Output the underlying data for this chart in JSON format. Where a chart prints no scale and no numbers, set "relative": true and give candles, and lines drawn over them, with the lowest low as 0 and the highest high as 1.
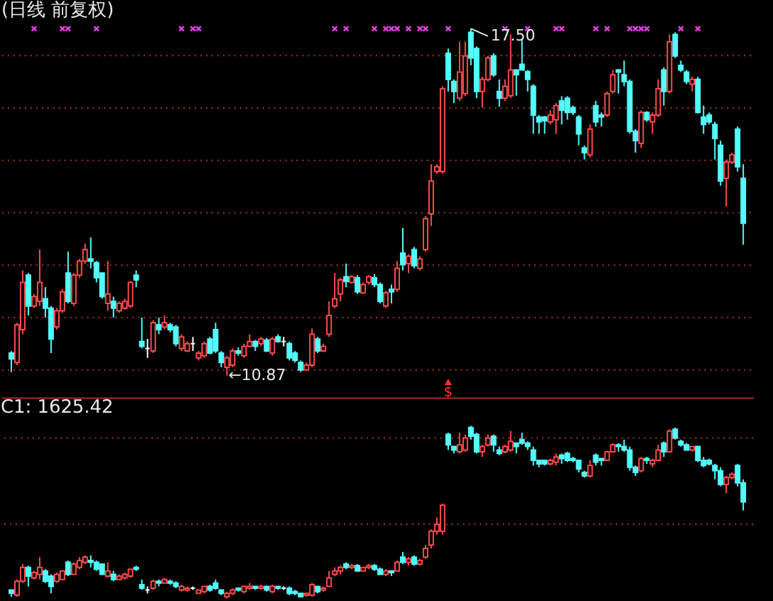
{
  "chart_data": [
    {
      "type": "candlestick",
      "title": "(日线 前复权)",
      "tick_labels": false,
      "grid": "y",
      "yticks": [
        {
          "value": 11,
          "label": null
        },
        {
          "value": 12,
          "label": null
        },
        {
          "value": 13,
          "label": null
        },
        {
          "value": 14,
          "label": null
        },
        {
          "value": 15,
          "label": null
        },
        {
          "value": 16,
          "label": null
        },
        {
          "value": 17,
          "label": null
        }
      ],
      "categories": [
        null,
        null,
        null,
        null,
        null,
        null,
        null,
        null,
        null,
        null,
        null,
        null,
        null,
        null,
        null,
        null,
        null,
        null,
        null,
        null,
        null,
        null,
        null,
        null,
        null,
        null,
        null,
        null,
        null,
        null,
        null,
        null,
        null,
        null,
        null,
        null,
        null,
        null,
        null,
        null,
        null,
        null,
        null,
        null,
        null,
        null,
        null,
        null,
        null,
        null,
        null,
        null,
        null,
        null,
        null,
        null,
        null,
        null,
        null,
        null,
        null,
        null,
        null,
        null,
        null,
        null,
        null,
        null,
        null,
        null,
        null,
        null,
        null,
        null,
        null,
        null,
        null,
        null,
        null,
        null,
        null,
        null,
        null,
        null,
        null,
        null,
        null,
        null,
        null,
        null,
        null,
        null,
        null,
        null,
        null,
        null,
        null,
        null,
        null,
        null,
        null,
        null,
        null,
        null,
        null,
        null,
        null,
        null,
        null,
        null,
        null,
        null,
        null,
        null,
        null,
        null,
        null,
        null,
        null,
        null,
        null,
        null,
        null,
        null,
        null,
        null,
        null,
        null,
        null,
        null
      ],
      "ohlc": [
        [
          11.3,
          11.34,
          10.94,
          11.19
        ],
        [
          11.12,
          11.88,
          11.07,
          11.84
        ],
        [
          11.75,
          12.88,
          11.66,
          12.65
        ],
        [
          12.79,
          12.83,
          12.02,
          12.2
        ],
        [
          12.2,
          12.43,
          12.16,
          12.38
        ],
        [
          12.29,
          13.28,
          12.2,
          12.65
        ],
        [
          12.34,
          12.56,
          11.98,
          12.16
        ],
        [
          12.16,
          12.2,
          11.3,
          11.57
        ],
        [
          11.8,
          12.16,
          11.75,
          12.11
        ],
        [
          12.11,
          12.52,
          12.07,
          12.47
        ],
        [
          12.83,
          13.24,
          12.25,
          12.29
        ],
        [
          12.25,
          12.83,
          12.2,
          12.79
        ],
        [
          12.79,
          13.1,
          12.74,
          13.06
        ],
        [
          13.06,
          13.39,
          13.01,
          13.28
        ],
        [
          13.1,
          13.51,
          12.92,
          13.06
        ],
        [
          13.03,
          13.06,
          12.65,
          12.74
        ],
        [
          12.83,
          12.83,
          12.34,
          12.38
        ],
        [
          12.25,
          13.06,
          12.11,
          12.43
        ],
        [
          12.29,
          12.38,
          11.98,
          12.16
        ],
        [
          12.11,
          12.29,
          12.07,
          12.25
        ],
        [
          12.16,
          12.34,
          12.13,
          12.29
        ],
        [
          12.2,
          12.67,
          12.16,
          12.65
        ],
        [
          12.79,
          12.88,
          12.56,
          12.7
        ],
        [
          11.52,
          11.98,
          11.39,
          11.43
        ],
        [
          11.39,
          11.57,
          11.21,
          11.39
        ],
        [
          11.34,
          11.93,
          11.3,
          11.88
        ],
        [
          11.84,
          11.98,
          11.66,
          11.75
        ],
        [
          11.8,
          12.02,
          11.75,
          11.88
        ],
        [
          11.84,
          11.88,
          11.7,
          11.75
        ],
        [
          11.8,
          11.84,
          11.43,
          11.48
        ],
        [
          11.39,
          11.66,
          11.34,
          11.61
        ],
        [
          11.34,
          11.52,
          11.32,
          11.48
        ],
        [
          11.48,
          11.61,
          11.34,
          11.48
        ],
        [
          11.21,
          11.34,
          11.16,
          11.3
        ],
        [
          11.25,
          11.52,
          11.21,
          11.48
        ],
        [
          11.57,
          11.61,
          11.28,
          11.3
        ],
        [
          11.75,
          11.88,
          11.3,
          11.34
        ],
        [
          11.3,
          11.34,
          11.03,
          11.12
        ],
        [
          11.03,
          11.25,
          10.87,
          11.21
        ],
        [
          11.07,
          11.39,
          11.03,
          11.34
        ],
        [
          11.34,
          11.41,
          11.25,
          11.3
        ],
        [
          11.25,
          11.48,
          11.21,
          11.43
        ],
        [
          11.43,
          11.66,
          11.41,
          11.52
        ],
        [
          11.52,
          11.55,
          11.34,
          11.43
        ],
        [
          11.48,
          11.61,
          11.43,
          11.57
        ],
        [
          11.55,
          11.59,
          11.32,
          11.34
        ],
        [
          11.3,
          11.61,
          11.25,
          11.57
        ],
        [
          11.61,
          11.66,
          11.5,
          11.52
        ],
        [
          11.52,
          11.61,
          11.43,
          11.52
        ],
        [
          11.48,
          11.52,
          11.16,
          11.21
        ],
        [
          11.3,
          11.34,
          11.12,
          11.16
        ],
        [
          11.12,
          11.16,
          10.94,
          10.98
        ],
        [
          10.98,
          11.12,
          10.96,
          11.07
        ],
        [
          11.07,
          11.77,
          11.03,
          11.66
        ],
        [
          11.57,
          11.61,
          11.3,
          11.34
        ],
        [
          11.34,
          11.48,
          11.32,
          11.43
        ],
        [
          11.66,
          12.29,
          11.61,
          12.02
        ],
        [
          12.2,
          12.83,
          12.16,
          12.34
        ],
        [
          12.43,
          12.74,
          12.29,
          12.7
        ],
        [
          12.76,
          13.01,
          12.56,
          12.67
        ],
        [
          12.65,
          12.79,
          12.63,
          12.76
        ],
        [
          12.74,
          12.79,
          12.43,
          12.47
        ],
        [
          12.45,
          12.65,
          12.43,
          12.61
        ],
        [
          12.65,
          12.79,
          12.61,
          12.76
        ],
        [
          12.74,
          12.81,
          12.56,
          12.61
        ],
        [
          12.61,
          12.65,
          12.25,
          12.29
        ],
        [
          12.2,
          12.49,
          12.16,
          12.45
        ],
        [
          12.52,
          12.61,
          12.25,
          12.47
        ],
        [
          12.52,
          13.06,
          12.47,
          12.92
        ],
        [
          13.21,
          13.69,
          12.88,
          12.99
        ],
        [
          13.01,
          13.19,
          12.83,
          13.15
        ],
        [
          13.28,
          13.33,
          12.92,
          12.97
        ],
        [
          12.92,
          13.15,
          12.88,
          13.1
        ],
        [
          13.28,
          13.92,
          13.24,
          13.87
        ],
        [
          13.96,
          14.91,
          13.73,
          14.59
        ],
        [
          14.77,
          14.91,
          14.73,
          14.86
        ],
        [
          14.77,
          16.4,
          14.73,
          16.35
        ],
        [
          17.03,
          17.12,
          16.3,
          16.53
        ],
        [
          16.49,
          16.53,
          16.08,
          16.3
        ],
        [
          16.17,
          17.25,
          16.12,
          16.67
        ],
        [
          16.26,
          17.25,
          16.21,
          16.98
        ],
        [
          17.43,
          17.5,
          16.8,
          16.94
        ],
        [
          17.12,
          17.16,
          16.17,
          16.3
        ],
        [
          16.3,
          16.58,
          15.99,
          16.53
        ],
        [
          16.53,
          16.98,
          16.49,
          16.94
        ],
        [
          16.98,
          17.03,
          16.58,
          16.62
        ],
        [
          16.3,
          16.53,
          16.01,
          16.17
        ],
        [
          16.17,
          16.53,
          16.12,
          16.4
        ],
        [
          16.22,
          17.39,
          16.17,
          16.71
        ],
        [
          16.71,
          16.71,
          16.22,
          16.62
        ],
        [
          16.82,
          17.3,
          16.71,
          16.71
        ],
        [
          16.68,
          16.71,
          16.3,
          16.53
        ],
        [
          16.4,
          16.44,
          15.49,
          15.85
        ],
        [
          15.81,
          15.85,
          15.49,
          15.72
        ],
        [
          15.81,
          15.83,
          15.49,
          15.74
        ],
        [
          15.72,
          15.94,
          15.67,
          15.85
        ],
        [
          15.76,
          16.08,
          15.49,
          16.03
        ],
        [
          16.12,
          16.21,
          15.67,
          15.94
        ],
        [
          16.17,
          16.21,
          15.76,
          15.9
        ],
        [
          15.99,
          16.03,
          15.85,
          15.9
        ],
        [
          15.81,
          15.85,
          15.27,
          15.49
        ],
        [
          15.22,
          15.27,
          15.0,
          15.13
        ],
        [
          15.09,
          15.67,
          15.04,
          15.58
        ],
        [
          16.03,
          16.12,
          15.63,
          15.72
        ],
        [
          15.85,
          15.9,
          15.63,
          15.81
        ],
        [
          15.85,
          16.3,
          15.81,
          16.26
        ],
        [
          16.3,
          16.71,
          16.26,
          16.62
        ],
        [
          16.71,
          16.73,
          16.26,
          16.67
        ],
        [
          16.62,
          16.89,
          16.4,
          16.49
        ],
        [
          16.49,
          16.53,
          15.49,
          15.54
        ],
        [
          15.54,
          15.58,
          15.13,
          15.36
        ],
        [
          15.31,
          15.94,
          15.22,
          15.9
        ],
        [
          15.9,
          15.92,
          15.72,
          15.76
        ],
        [
          15.72,
          15.9,
          15.49,
          15.85
        ],
        [
          15.85,
          16.53,
          15.81,
          16.35
        ],
        [
          16.71,
          16.76,
          16.03,
          16.3
        ],
        [
          16.3,
          17.39,
          16.26,
          17.25
        ],
        [
          17.39,
          17.43,
          16.94,
          16.98
        ],
        [
          16.8,
          16.89,
          16.67,
          16.71
        ],
        [
          16.67,
          16.71,
          16.44,
          16.49
        ],
        [
          16.44,
          16.58,
          16.3,
          16.53
        ],
        [
          16.53,
          16.58,
          15.88,
          15.9
        ],
        [
          15.81,
          16.03,
          15.49,
          15.67
        ],
        [
          15.85,
          15.9,
          15.67,
          15.72
        ],
        [
          15.67,
          15.72,
          15.0,
          15.4
        ],
        [
          15.27,
          15.36,
          14.5,
          14.59
        ],
        [
          14.64,
          15.0,
          14.1,
          14.95
        ],
        [
          14.95,
          15.13,
          14.91,
          15.09
        ],
        [
          15.58,
          15.63,
          14.77,
          14.86
        ],
        [
          14.64,
          14.91,
          13.37,
          13.78
        ]
      ],
      "colors": [
        "#54fcfc",
        "#ff4a4a",
        "#ff4a4a",
        "#54fcfc",
        "#ff4a4a",
        "#ff4a4a",
        "#54fcfc",
        "#54fcfc",
        "#ff4a4a",
        "#ff4a4a",
        "#54fcfc",
        "#ff4a4a",
        "#ff4a4a",
        "#ff4a4a",
        "#54fcfc",
        "#54fcfc",
        "#54fcfc",
        "#ff4a4a",
        "#54fcfc",
        "#ff4a4a",
        "#ff4a4a",
        "#ff4a4a",
        "#54fcfc",
        "#54fcfc",
        "#ffffff",
        "#ff4a4a",
        "#54fcfc",
        "#ff4a4a",
        "#54fcfc",
        "#54fcfc",
        "#ff4a4a",
        "#ff4a4a",
        "#ffffff",
        "#ff4a4a",
        "#ff4a4a",
        "#54fcfc",
        "#54fcfc",
        "#54fcfc",
        "#ff4a4a",
        "#ff4a4a",
        "#54fcfc",
        "#ff4a4a",
        "#ff4a4a",
        "#54fcfc",
        "#ff4a4a",
        "#54fcfc",
        "#ff4a4a",
        "#54fcfc",
        "#ffffff",
        "#54fcfc",
        "#54fcfc",
        "#54fcfc",
        "#ff4a4a",
        "#ff4a4a",
        "#54fcfc",
        "#ff4a4a",
        "#ff4a4a",
        "#ff4a4a",
        "#ff4a4a",
        "#54fcfc",
        "#ff4a4a",
        "#54fcfc",
        "#ff4a4a",
        "#ff4a4a",
        "#54fcfc",
        "#54fcfc",
        "#ff4a4a",
        "#54fcfc",
        "#ff4a4a",
        "#54fcfc",
        "#ff4a4a",
        "#54fcfc",
        "#ff4a4a",
        "#ff4a4a",
        "#ff4a4a",
        "#ff4a4a",
        "#ff4a4a",
        "#54fcfc",
        "#54fcfc",
        "#ff4a4a",
        "#ff4a4a",
        "#54fcfc",
        "#54fcfc",
        "#ff4a4a",
        "#ff4a4a",
        "#54fcfc",
        "#54fcfc",
        "#ff4a4a",
        "#ff4a4a",
        "#54fcfc",
        "#54fcfc",
        "#54fcfc",
        "#54fcfc",
        "#54fcfc",
        "#54fcfc",
        "#ff4a4a",
        "#ff4a4a",
        "#54fcfc",
        "#54fcfc",
        "#54fcfc",
        "#54fcfc",
        "#54fcfc",
        "#ff4a4a",
        "#54fcfc",
        "#54fcfc",
        "#ff4a4a",
        "#ff4a4a",
        "#54fcfc",
        "#54fcfc",
        "#54fcfc",
        "#54fcfc",
        "#ff4a4a",
        "#54fcfc",
        "#ff4a4a",
        "#ff4a4a",
        "#54fcfc",
        "#ff4a4a",
        "#54fcfc",
        "#54fcfc",
        "#54fcfc",
        "#ff4a4a",
        "#54fcfc",
        "#54fcfc",
        "#54fcfc",
        "#54fcfc",
        "#54fcfc",
        "#ff4a4a",
        "#ff4a4a",
        "#54fcfc",
        "#54fcfc"
      ],
      "annotations": [
        "←10.87",
        {
          "text": "17.50",
          "y": 17.5
        }
      ],
      "series": [
        {
          "type": "scatter",
          "color": "#e040e0",
          "marker": "cross",
          "values": [
            null,
            null,
            null,
            null,
            17.5,
            null,
            null,
            null,
            null,
            17.5,
            17.5,
            null,
            null,
            null,
            null,
            17.5,
            null,
            null,
            null,
            null,
            null,
            null,
            null,
            null,
            null,
            null,
            null,
            null,
            null,
            null,
            17.5,
            null,
            17.5,
            17.5,
            null,
            null,
            null,
            null,
            null,
            null,
            null,
            null,
            null,
            null,
            null,
            null,
            null,
            null,
            null,
            null,
            null,
            null,
            null,
            null,
            null,
            null,
            null,
            17.5,
            null,
            17.5,
            null,
            null,
            null,
            null,
            17.5,
            null,
            17.5,
            17.5,
            17.5,
            null,
            17.5,
            null,
            17.5,
            17.5,
            null,
            null,
            null,
            17.5,
            null,
            null,
            null,
            null,
            null,
            null,
            null,
            null,
            null,
            17.5,
            null,
            null,
            null,
            17.5,
            null,
            null,
            null,
            null,
            17.5,
            17.5,
            null,
            null,
            null,
            null,
            null,
            17.5,
            null,
            17.5,
            null,
            null,
            null,
            17.5,
            17.5,
            17.5,
            17.5,
            null,
            null,
            null,
            null,
            null,
            17.5,
            null,
            null,
            17.5,
            null,
            null,
            null,
            null,
            null,
            null,
            null,
            null
          ]
        },
        {
          "type": "scatter",
          "color": "#ff3030",
          "marker": "triangle",
          "values": [
            null,
            null,
            null,
            null,
            null,
            null,
            null,
            null,
            null,
            null,
            null,
            null,
            null,
            null,
            null,
            null,
            null,
            null,
            null,
            null,
            null,
            null,
            null,
            null,
            null,
            null,
            null,
            null,
            null,
            null,
            null,
            null,
            null,
            null,
            null,
            null,
            null,
            null,
            null,
            null,
            null,
            null,
            null,
            null,
            null,
            null,
            null,
            null,
            null,
            null,
            null,
            null,
            null,
            null,
            null,
            null,
            null,
            null,
            null,
            null,
            null,
            null,
            null,
            null,
            null,
            null,
            null,
            null,
            null,
            null,
            null,
            null,
            null,
            null,
            null,
            null,
            null,
            10.75,
            null,
            null,
            null,
            null,
            null,
            null,
            null,
            null,
            null,
            null,
            null,
            null,
            null,
            null,
            null,
            null,
            null,
            null,
            null,
            null,
            null,
            null,
            null,
            null,
            null,
            null,
            null,
            null,
            null,
            null,
            null,
            null,
            null,
            null,
            null,
            null,
            null,
            null,
            null,
            null,
            null,
            null,
            null,
            null,
            null,
            null,
            null,
            null,
            null,
            null,
            null,
            null
          ],
          "value_labels": [
            null,
            null,
            null,
            null,
            null,
            null,
            null,
            null,
            null,
            null,
            null,
            null,
            null,
            null,
            null,
            null,
            null,
            null,
            null,
            null,
            null,
            null,
            null,
            null,
            null,
            null,
            null,
            null,
            null,
            null,
            null,
            null,
            null,
            null,
            null,
            null,
            null,
            null,
            null,
            null,
            null,
            null,
            null,
            null,
            null,
            null,
            null,
            null,
            null,
            null,
            null,
            null,
            null,
            null,
            null,
            null,
            null,
            null,
            null,
            null,
            null,
            null,
            null,
            null,
            null,
            null,
            null,
            null,
            null,
            null,
            null,
            null,
            null,
            null,
            null,
            null,
            null,
            "$",
            null,
            null,
            null,
            null,
            null,
            null,
            null,
            null,
            null,
            null,
            null,
            null,
            null,
            null,
            null,
            null,
            null,
            null,
            null,
            null,
            null,
            null,
            null,
            null,
            null,
            null,
            null,
            null,
            null,
            null,
            null,
            null,
            null,
            null,
            null,
            null,
            null,
            null,
            null,
            null,
            null,
            null,
            null,
            null,
            null,
            null,
            null,
            null,
            null,
            null,
            null,
            null
          ]
        }
      ]
    },
    {
      "type": "candlestick",
      "title": "C1: 1625.42",
      "relative": true,
      "tick_labels": false,
      "categories": [
        null,
        null,
        null,
        null,
        null,
        null,
        null,
        null,
        null,
        null,
        null,
        null,
        null,
        null,
        null,
        null,
        null,
        null,
        null,
        null,
        null,
        null,
        null,
        null,
        null,
        null,
        null,
        null,
        null,
        null,
        null,
        null,
        null,
        null,
        null,
        null,
        null,
        null,
        null,
        null,
        null,
        null,
        null,
        null,
        null,
        null,
        null,
        null,
        null,
        null,
        null,
        null,
        null,
        null,
        null,
        null,
        null,
        null,
        null,
        null,
        null,
        null,
        null,
        null,
        null,
        null,
        null,
        null,
        null,
        null,
        null,
        null,
        null,
        null,
        null,
        null,
        null,
        null,
        null,
        null,
        null,
        null,
        null,
        null,
        null,
        null,
        null,
        null,
        null,
        null,
        null,
        null,
        null,
        null,
        null,
        null,
        null,
        null,
        null,
        null,
        null,
        null,
        null,
        null,
        null,
        null,
        null,
        null,
        null,
        null,
        null,
        null,
        null,
        null,
        null,
        null,
        null,
        null,
        null,
        null,
        null,
        null,
        null,
        null,
        null,
        null,
        null,
        null,
        null,
        null
      ],
      "ohlc": [
        [
          0.05,
          0.05,
          0.01,
          0.03
        ],
        [
          0.02,
          0.11,
          0.01,
          0.1
        ],
        [
          0.1,
          0.2,
          0.09,
          0.18
        ],
        [
          0.18,
          0.19,
          0.07,
          0.13
        ],
        [
          0.12,
          0.16,
          0.11,
          0.15
        ],
        [
          0.14,
          0.24,
          0.11,
          0.18
        ],
        [
          0.16,
          0.17,
          0.09,
          0.1
        ],
        [
          0.13,
          0.14,
          0.03,
          0.07
        ],
        [
          0.1,
          0.15,
          0.09,
          0.14
        ],
        [
          0.11,
          0.16,
          0.11,
          0.16
        ],
        [
          0.21,
          0.22,
          0.13,
          0.14
        ],
        [
          0.14,
          0.21,
          0.14,
          0.2
        ],
        [
          0.18,
          0.24,
          0.17,
          0.22
        ],
        [
          0.21,
          0.25,
          0.2,
          0.24
        ],
        [
          0.22,
          0.25,
          0.18,
          0.21
        ],
        [
          0.21,
          0.22,
          0.16,
          0.17
        ],
        [
          0.2,
          0.2,
          0.14,
          0.14
        ],
        [
          0.13,
          0.21,
          0.12,
          0.16
        ],
        [
          0.14,
          0.16,
          0.1,
          0.11
        ],
        [
          0.11,
          0.14,
          0.11,
          0.13
        ],
        [
          0.12,
          0.15,
          0.11,
          0.14
        ],
        [
          0.13,
          0.17,
          0.12,
          0.17
        ],
        [
          0.18,
          0.19,
          0.16,
          0.17
        ],
        [
          0.08,
          0.11,
          0.05,
          0.06
        ],
        [
          0.05,
          0.07,
          0.03,
          0.05
        ],
        [
          0.06,
          0.11,
          0.05,
          0.1
        ],
        [
          0.1,
          0.11,
          0.07,
          0.09
        ],
        [
          0.09,
          0.12,
          0.09,
          0.11
        ],
        [
          0.1,
          0.11,
          0.08,
          0.09
        ],
        [
          0.09,
          0.1,
          0.06,
          0.07
        ],
        [
          0.05,
          0.08,
          0.04,
          0.07
        ],
        [
          0.05,
          0.07,
          0.04,
          0.06
        ],
        [
          0.06,
          0.07,
          0.05,
          0.06
        ],
        [
          0.03,
          0.05,
          0.03,
          0.05
        ],
        [
          0.04,
          0.07,
          0.03,
          0.07
        ],
        [
          0.07,
          0.08,
          0.04,
          0.05
        ],
        [
          0.09,
          0.11,
          0.05,
          0.06
        ],
        [
          0.05,
          0.05,
          0.02,
          0.03
        ],
        [
          0.01,
          0.04,
          0,
          0.03
        ],
        [
          0.03,
          0.06,
          0.02,
          0.05
        ],
        [
          0.06,
          0.06,
          0.04,
          0.05
        ],
        [
          0.04,
          0.07,
          0.03,
          0.07
        ],
        [
          0.06,
          0.09,
          0.05,
          0.07
        ],
        [
          0.07,
          0.07,
          0.05,
          0.06
        ],
        [
          0.06,
          0.08,
          0.05,
          0.07
        ],
        [
          0.07,
          0.07,
          0.04,
          0.05
        ],
        [
          0.04,
          0.08,
          0.03,
          0.07
        ],
        [
          0.07,
          0.07,
          0.05,
          0.06
        ],
        [
          0.06,
          0.07,
          0.05,
          0.06
        ],
        [
          0.06,
          0.07,
          0.02,
          0.03
        ],
        [
          0.04,
          0.05,
          0.02,
          0.03
        ],
        [
          0.03,
          0.03,
          0.01,
          0.01
        ],
        [
          0.02,
          0.03,
          0.01,
          0.03
        ],
        [
          0.02,
          0.09,
          0.01,
          0.08
        ],
        [
          0.07,
          0.07,
          0.03,
          0.04
        ],
        [
          0.05,
          0.07,
          0.04,
          0.06
        ],
        [
          0.07,
          0.16,
          0.07,
          0.12
        ],
        [
          0.14,
          0.18,
          0.13,
          0.16
        ],
        [
          0.16,
          0.19,
          0.14,
          0.18
        ],
        [
          0.2,
          0.21,
          0.17,
          0.18
        ],
        [
          0.18,
          0.2,
          0.17,
          0.19
        ],
        [
          0.19,
          0.2,
          0.16,
          0.16
        ],
        [
          0.16,
          0.18,
          0.16,
          0.18
        ],
        [
          0.18,
          0.2,
          0.17,
          0.19
        ],
        [
          0.19,
          0.2,
          0.16,
          0.17
        ],
        [
          0.17,
          0.18,
          0.14,
          0.14
        ],
        [
          0.14,
          0.17,
          0.13,
          0.16
        ],
        [
          0.16,
          0.16,
          0.13,
          0.15
        ],
        [
          0.16,
          0.22,
          0.16,
          0.21
        ],
        [
          0.24,
          0.27,
          0.2,
          0.21
        ],
        [
          0.21,
          0.24,
          0.19,
          0.23
        ],
        [
          0.24,
          0.25,
          0.19,
          0.2
        ],
        [
          0.2,
          0.23,
          0.19,
          0.22
        ],
        [
          0.24,
          0.31,
          0.23,
          0.29
        ],
        [
          0.31,
          0.4,
          0.29,
          0.39
        ],
        [
          0.39,
          0.47,
          0.37,
          0.43
        ],
        [
          0.39,
          0.55,
          0.37,
          0.54
        ],
        [
          0.95,
          0.96,
          0.86,
          0.89
        ],
        [
          0.88,
          0.88,
          0.84,
          0.86
        ],
        [
          0.85,
          0.96,
          0.84,
          0.89
        ],
        [
          0.86,
          0.95,
          0.85,
          0.93
        ],
        [
          0.99,
          1,
          0.92,
          0.94
        ],
        [
          0.95,
          0.96,
          0.84,
          0.85
        ],
        [
          0.85,
          0.89,
          0.82,
          0.88
        ],
        [
          0.89,
          0.95,
          0.88,
          0.93
        ],
        [
          0.94,
          0.95,
          0.85,
          0.89
        ],
        [
          0.86,
          0.88,
          0.83,
          0.84
        ],
        [
          0.85,
          0.89,
          0.84,
          0.88
        ],
        [
          0.86,
          0.97,
          0.85,
          0.91
        ],
        [
          0.9,
          0.9,
          0.84,
          0.88
        ],
        [
          0.92,
          0.96,
          0.89,
          0.9
        ],
        [
          0.9,
          0.91,
          0.86,
          0.88
        ],
        [
          0.86,
          0.88,
          0.77,
          0.8
        ],
        [
          0.8,
          0.8,
          0.76,
          0.78
        ],
        [
          0.8,
          0.8,
          0.77,
          0.78
        ],
        [
          0.78,
          0.81,
          0.77,
          0.8
        ],
        [
          0.79,
          0.84,
          0.77,
          0.82
        ],
        [
          0.83,
          0.84,
          0.78,
          0.81
        ],
        [
          0.84,
          0.85,
          0.79,
          0.8
        ],
        [
          0.81,
          0.82,
          0.79,
          0.8
        ],
        [
          0.8,
          0.8,
          0.73,
          0.75
        ],
        [
          0.73,
          0.74,
          0.7,
          0.71
        ],
        [
          0.71,
          0.8,
          0.7,
          0.77
        ],
        [
          0.83,
          0.84,
          0.77,
          0.79
        ],
        [
          0.81,
          0.81,
          0.77,
          0.8
        ],
        [
          0.8,
          0.85,
          0.8,
          0.85
        ],
        [
          0.85,
          0.9,
          0.85,
          0.89
        ],
        [
          0.89,
          0.9,
          0.85,
          0.88
        ],
        [
          0.88,
          0.92,
          0.85,
          0.86
        ],
        [
          0.86,
          0.88,
          0.74,
          0.76
        ],
        [
          0.76,
          0.77,
          0.71,
          0.73
        ],
        [
          0.74,
          0.82,
          0.73,
          0.81
        ],
        [
          0.81,
          0.82,
          0.78,
          0.8
        ],
        [
          0.78,
          0.81,
          0.76,
          0.8
        ],
        [
          0.8,
          0.89,
          0.8,
          0.86
        ],
        [
          0.9,
          0.91,
          0.82,
          0.85
        ],
        [
          0.85,
          0.98,
          0.85,
          0.97
        ],
        [
          0.98,
          0.99,
          0.92,
          0.93
        ],
        [
          0.91,
          0.92,
          0.88,
          0.89
        ],
        [
          0.89,
          0.9,
          0.86,
          0.86
        ],
        [
          0.86,
          0.88,
          0.85,
          0.88
        ],
        [
          0.88,
          0.88,
          0.79,
          0.8
        ],
        [
          0.8,
          0.82,
          0.76,
          0.77
        ],
        [
          0.8,
          0.81,
          0.77,
          0.78
        ],
        [
          0.77,
          0.78,
          0.69,
          0.74
        ],
        [
          0.74,
          0.76,
          0.65,
          0.66
        ],
        [
          0.66,
          0.71,
          0.61,
          0.7
        ],
        [
          0.7,
          0.73,
          0.69,
          0.72
        ],
        [
          0.77,
          0.78,
          0.65,
          0.67
        ],
        [
          0.67,
          0.69,
          0.51,
          0.56
        ]
      ],
      "colors": [
        "#54fcfc",
        "#ff4a4a",
        "#ff4a4a",
        "#54fcfc",
        "#ff4a4a",
        "#ff4a4a",
        "#54fcfc",
        "#54fcfc",
        "#ff4a4a",
        "#ff4a4a",
        "#54fcfc",
        "#ff4a4a",
        "#ff4a4a",
        "#ff4a4a",
        "#54fcfc",
        "#54fcfc",
        "#54fcfc",
        "#ff4a4a",
        "#54fcfc",
        "#ff4a4a",
        "#ff4a4a",
        "#ff4a4a",
        "#54fcfc",
        "#54fcfc",
        "#ffffff",
        "#ff4a4a",
        "#54fcfc",
        "#ff4a4a",
        "#54fcfc",
        "#54fcfc",
        "#ff4a4a",
        "#ff4a4a",
        "#ffffff",
        "#ff4a4a",
        "#ff4a4a",
        "#54fcfc",
        "#54fcfc",
        "#54fcfc",
        "#ff4a4a",
        "#ff4a4a",
        "#54fcfc",
        "#ff4a4a",
        "#ff4a4a",
        "#54fcfc",
        "#ff4a4a",
        "#54fcfc",
        "#ff4a4a",
        "#54fcfc",
        "#ffffff",
        "#54fcfc",
        "#54fcfc",
        "#54fcfc",
        "#ff4a4a",
        "#ff4a4a",
        "#54fcfc",
        "#ff4a4a",
        "#ff4a4a",
        "#ff4a4a",
        "#ff4a4a",
        "#54fcfc",
        "#ff4a4a",
        "#54fcfc",
        "#ff4a4a",
        "#ff4a4a",
        "#54fcfc",
        "#54fcfc",
        "#ff4a4a",
        "#54fcfc",
        "#ff4a4a",
        "#54fcfc",
        "#ff4a4a",
        "#54fcfc",
        "#ff4a4a",
        "#ff4a4a",
        "#ff4a4a",
        "#ff4a4a",
        "#ff4a4a",
        "#54fcfc",
        "#54fcfc",
        "#ff4a4a",
        "#ff4a4a",
        "#54fcfc",
        "#54fcfc",
        "#ff4a4a",
        "#ff4a4a",
        "#54fcfc",
        "#54fcfc",
        "#ff4a4a",
        "#ff4a4a",
        "#54fcfc",
        "#54fcfc",
        "#54fcfc",
        "#54fcfc",
        "#54fcfc",
        "#54fcfc",
        "#ff4a4a",
        "#ff4a4a",
        "#54fcfc",
        "#54fcfc",
        "#54fcfc",
        "#54fcfc",
        "#54fcfc",
        "#ff4a4a",
        "#54fcfc",
        "#54fcfc",
        "#ff4a4a",
        "#ff4a4a",
        "#54fcfc",
        "#54fcfc",
        "#54fcfc",
        "#54fcfc",
        "#ff4a4a",
        "#54fcfc",
        "#ff4a4a",
        "#ff4a4a",
        "#54fcfc",
        "#ff4a4a",
        "#54fcfc",
        "#54fcfc",
        "#54fcfc",
        "#ff4a4a",
        "#54fcfc",
        "#54fcfc",
        "#54fcfc",
        "#54fcfc",
        "#54fcfc",
        "#ff4a4a",
        "#ff4a4a",
        "#54fcfc",
        "#54fcfc"
      ],
      "ref_lines": [
        {
          "axis": "y",
          "value": 0.93,
          "color": "#a83232",
          "line_style": "dotted"
        },
        {
          "axis": "y",
          "value": 0.43,
          "color": "#a83232",
          "line_style": "dotted"
        }
      ]
    }
  ]
}
